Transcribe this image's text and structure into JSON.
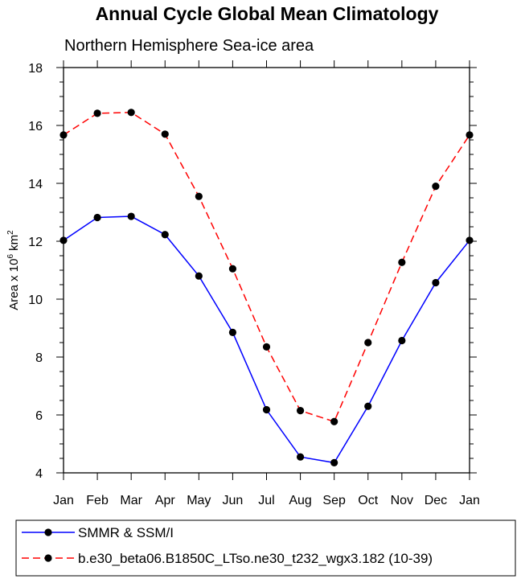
{
  "chart_data": {
    "type": "line",
    "title": "Annual Cycle Global Mean Climatology",
    "subtitle": "Northern Hemisphere Sea-ice area",
    "ylabel": {
      "prefix": "Area x 10",
      "exp1": "6",
      "mid": " km",
      "exp2": "2"
    },
    "ylim": [
      4,
      18
    ],
    "yticks": [
      "4",
      "6",
      "8",
      "10",
      "12",
      "14",
      "16",
      "18"
    ],
    "categories": [
      "Jan",
      "Feb",
      "Mar",
      "Apr",
      "May",
      "Jun",
      "Jul",
      "Aug",
      "Sep",
      "Oct",
      "Nov",
      "Dec",
      "Jan"
    ],
    "grid": false,
    "legend_position": "bottom",
    "series": [
      {
        "name": "SMMR & SSM/I",
        "color": "#0000ff",
        "dash": "solid",
        "marker": "filled-circle",
        "values": [
          12.03,
          12.82,
          12.86,
          12.23,
          10.8,
          8.85,
          6.18,
          4.55,
          4.35,
          6.3,
          8.57,
          10.57,
          12.03
        ]
      },
      {
        "name": "b.e30_beta06.B1850C_LTso.ne30_t232_wgx3.182 (10-39)",
        "color": "#ff0000",
        "dash": "dashed",
        "marker": "filled-circle",
        "values": [
          15.67,
          16.42,
          16.45,
          15.7,
          13.55,
          11.05,
          8.35,
          6.15,
          5.77,
          8.5,
          11.27,
          13.9,
          15.67
        ]
      }
    ]
  }
}
